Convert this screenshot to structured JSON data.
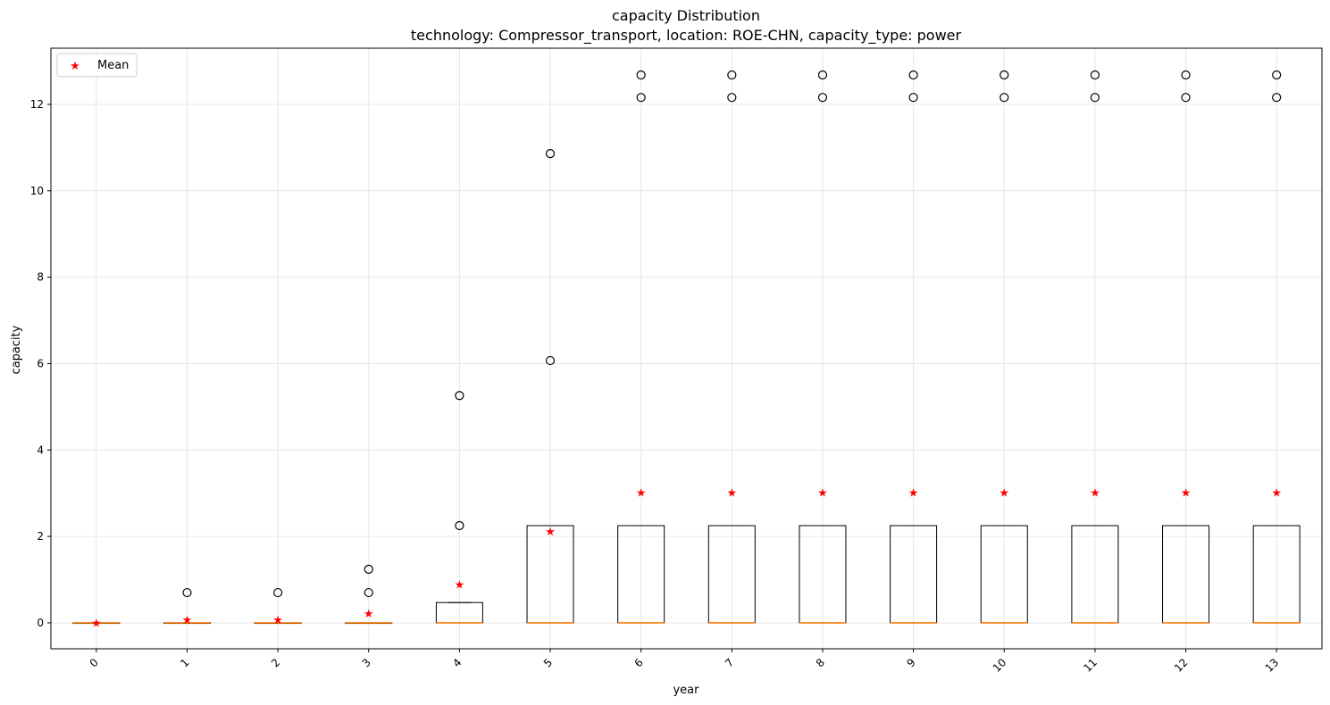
{
  "chart_data": {
    "type": "boxplot",
    "title": "capacity Distribution",
    "subtitle": "technology: Compressor_transport, location: ROE-CHN, capacity_type: power",
    "xlabel": "year",
    "ylabel": "capacity",
    "xlim": [
      -0.5,
      13.5
    ],
    "ylim": [
      -0.6,
      13.3
    ],
    "yticks": [
      0,
      2,
      4,
      6,
      8,
      10,
      12
    ],
    "grid": true,
    "legend": {
      "placement": "top-left",
      "entries": [
        {
          "label": "Mean",
          "marker": "star",
          "color": "#ff0000"
        }
      ]
    },
    "colors": {
      "box": "#000000",
      "median": "#ff7f0e",
      "mean": "#ff0000",
      "grid": "#e6e6e6"
    },
    "categories": [
      "0",
      "1",
      "2",
      "3",
      "4",
      "5",
      "6",
      "7",
      "8",
      "9",
      "10",
      "11",
      "12",
      "13"
    ],
    "boxes": [
      {
        "x": "0",
        "q1": 0,
        "median": 0,
        "q3": 0,
        "whisker_low": 0,
        "whisker_high": 0,
        "mean": 0.0,
        "outliers": []
      },
      {
        "x": "1",
        "q1": 0,
        "median": 0,
        "q3": 0,
        "whisker_low": 0,
        "whisker_high": 0,
        "mean": 0.07,
        "outliers": [
          0.7
        ]
      },
      {
        "x": "2",
        "q1": 0,
        "median": 0,
        "q3": 0,
        "whisker_low": 0,
        "whisker_high": 0,
        "mean": 0.07,
        "outliers": [
          0.7
        ]
      },
      {
        "x": "3",
        "q1": 0,
        "median": 0,
        "q3": 0,
        "whisker_low": 0,
        "whisker_high": 0,
        "mean": 0.22,
        "outliers": [
          0.7,
          1.24
        ]
      },
      {
        "x": "4",
        "q1": 0,
        "median": 0,
        "q3": 0.47,
        "whisker_low": 0,
        "whisker_high": 0.47,
        "mean": 0.89,
        "outliers": [
          2.25,
          5.26
        ]
      },
      {
        "x": "5",
        "q1": 0,
        "median": 0,
        "q3": 2.25,
        "whisker_low": 0,
        "whisker_high": 2.25,
        "mean": 2.12,
        "outliers": [
          6.07,
          10.86
        ]
      },
      {
        "x": "6",
        "q1": 0,
        "median": 0,
        "q3": 2.25,
        "whisker_low": 0,
        "whisker_high": 2.25,
        "mean": 3.01,
        "outliers": [
          12.16,
          12.68
        ]
      },
      {
        "x": "7",
        "q1": 0,
        "median": 0,
        "q3": 2.25,
        "whisker_low": 0,
        "whisker_high": 2.25,
        "mean": 3.01,
        "outliers": [
          12.16,
          12.68
        ]
      },
      {
        "x": "8",
        "q1": 0,
        "median": 0,
        "q3": 2.25,
        "whisker_low": 0,
        "whisker_high": 2.25,
        "mean": 3.01,
        "outliers": [
          12.16,
          12.68
        ]
      },
      {
        "x": "9",
        "q1": 0,
        "median": 0,
        "q3": 2.25,
        "whisker_low": 0,
        "whisker_high": 2.25,
        "mean": 3.01,
        "outliers": [
          12.16,
          12.68
        ]
      },
      {
        "x": "10",
        "q1": 0,
        "median": 0,
        "q3": 2.25,
        "whisker_low": 0,
        "whisker_high": 2.25,
        "mean": 3.01,
        "outliers": [
          12.16,
          12.68
        ]
      },
      {
        "x": "11",
        "q1": 0,
        "median": 0,
        "q3": 2.25,
        "whisker_low": 0,
        "whisker_high": 2.25,
        "mean": 3.01,
        "outliers": [
          12.16,
          12.68
        ]
      },
      {
        "x": "12",
        "q1": 0,
        "median": 0,
        "q3": 2.25,
        "whisker_low": 0,
        "whisker_high": 2.25,
        "mean": 3.01,
        "outliers": [
          12.16,
          12.68
        ]
      },
      {
        "x": "13",
        "q1": 0,
        "median": 0,
        "q3": 2.25,
        "whisker_low": 0,
        "whisker_high": 2.25,
        "mean": 3.01,
        "outliers": [
          12.16,
          12.68
        ]
      }
    ]
  }
}
